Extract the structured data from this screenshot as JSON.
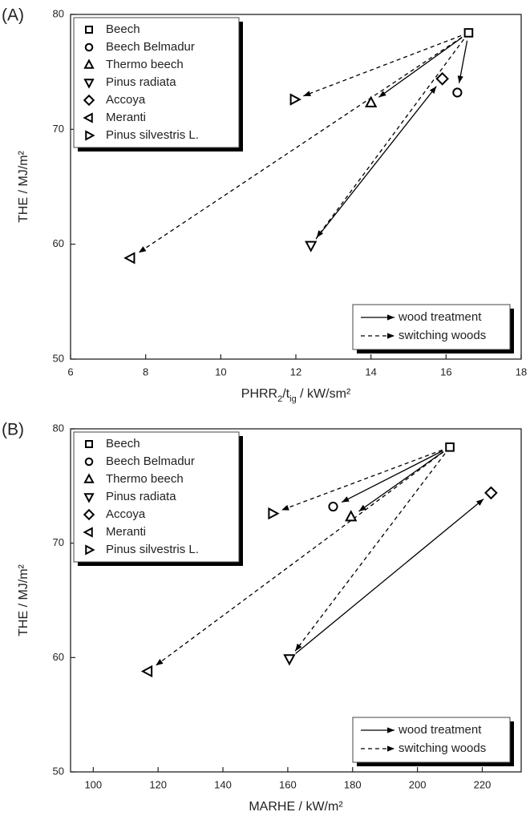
{
  "chart_data": [
    {
      "type": "scatter",
      "panel_label": "(A)",
      "xlabel": [
        {
          "text": "PHRR"
        },
        {
          "text": "2",
          "sub": true
        },
        {
          "text": "/t"
        },
        {
          "text": "ig",
          "sub": true
        },
        {
          "text": " / kW/sm²"
        }
      ],
      "ylabel": "THE / MJ/m²",
      "xlim": [
        6,
        18
      ],
      "xticks": [
        6,
        8,
        10,
        12,
        14,
        16,
        18
      ],
      "ylim": [
        50,
        80
      ],
      "yticks": [
        50,
        60,
        70,
        80
      ],
      "color": "#000000",
      "series": [
        {
          "name": "Beech",
          "marker": "square",
          "x": [
            16.6
          ],
          "values": [
            78.4
          ]
        },
        {
          "name": "Beech Belmadur",
          "marker": "circle",
          "x": [
            16.3
          ],
          "values": [
            73.2
          ]
        },
        {
          "name": "Thermo beech",
          "marker": "triangle-up",
          "x": [
            14.0
          ],
          "values": [
            72.3
          ]
        },
        {
          "name": "Pinus radiata",
          "marker": "triangle-down",
          "x": [
            12.4
          ],
          "values": [
            59.9
          ]
        },
        {
          "name": "Accoya",
          "marker": "diamond",
          "x": [
            15.9
          ],
          "values": [
            74.4
          ]
        },
        {
          "name": "Meranti",
          "marker": "triangle-left",
          "x": [
            7.6
          ],
          "values": [
            58.8
          ]
        },
        {
          "name": "Pinus silvestris L.",
          "marker": "triangle-right",
          "x": [
            11.96
          ],
          "values": [
            72.6
          ]
        }
      ],
      "arrows": [
        {
          "from": "Beech",
          "to": "Beech Belmadur",
          "style": "solid"
        },
        {
          "from": "Beech",
          "to": "Thermo beech",
          "style": "solid"
        },
        {
          "from": "Pinus radiata",
          "to": "Accoya",
          "style": "solid"
        },
        {
          "from": "Beech",
          "to": "Pinus silvestris L.",
          "style": "dashed"
        },
        {
          "from": "Beech",
          "to": "Meranti",
          "style": "dashed"
        },
        {
          "from": "Beech",
          "to": "Pinus radiata",
          "style": "dashed"
        }
      ],
      "arrow_legend": [
        {
          "label": "wood treatment",
          "style": "solid"
        },
        {
          "label": "switching woods",
          "style": "dashed"
        }
      ]
    },
    {
      "type": "scatter",
      "panel_label": "(B)",
      "xlabel": [
        {
          "text": "MARHE / kW/m²"
        }
      ],
      "ylabel": "THE / MJ/m²",
      "xlim": [
        93,
        232
      ],
      "xticks": [
        100,
        120,
        140,
        160,
        180,
        200,
        220
      ],
      "ylim": [
        50,
        80
      ],
      "yticks": [
        50,
        60,
        70,
        80
      ],
      "color": "#000000",
      "series": [
        {
          "name": "Beech",
          "marker": "square",
          "x": [
            210
          ],
          "values": [
            78.4
          ]
        },
        {
          "name": "Beech Belmadur",
          "marker": "circle",
          "x": [
            174
          ],
          "values": [
            73.2
          ]
        },
        {
          "name": "Thermo beech",
          "marker": "triangle-up",
          "x": [
            179.5
          ],
          "values": [
            72.3
          ]
        },
        {
          "name": "Pinus radiata",
          "marker": "triangle-down",
          "x": [
            160.5
          ],
          "values": [
            59.9
          ]
        },
        {
          "name": "Accoya",
          "marker": "diamond",
          "x": [
            222.7
          ],
          "values": [
            74.4
          ]
        },
        {
          "name": "Meranti",
          "marker": "triangle-left",
          "x": [
            116.9
          ],
          "values": [
            58.8
          ]
        },
        {
          "name": "Pinus silvestris L.",
          "marker": "triangle-right",
          "x": [
            155.3
          ],
          "values": [
            72.6
          ]
        }
      ],
      "arrows": [
        {
          "from": "Beech",
          "to": "Beech Belmadur",
          "style": "solid"
        },
        {
          "from": "Beech",
          "to": "Thermo beech",
          "style": "solid"
        },
        {
          "from": "Pinus radiata",
          "to": "Accoya",
          "style": "solid"
        },
        {
          "from": "Beech",
          "to": "Pinus silvestris L.",
          "style": "dashed"
        },
        {
          "from": "Beech",
          "to": "Meranti",
          "style": "dashed"
        },
        {
          "from": "Beech",
          "to": "Pinus radiata",
          "style": "dashed"
        }
      ],
      "arrow_legend": [
        {
          "label": "wood treatment",
          "style": "solid"
        },
        {
          "label": "switching woods",
          "style": "dashed"
        }
      ]
    }
  ]
}
